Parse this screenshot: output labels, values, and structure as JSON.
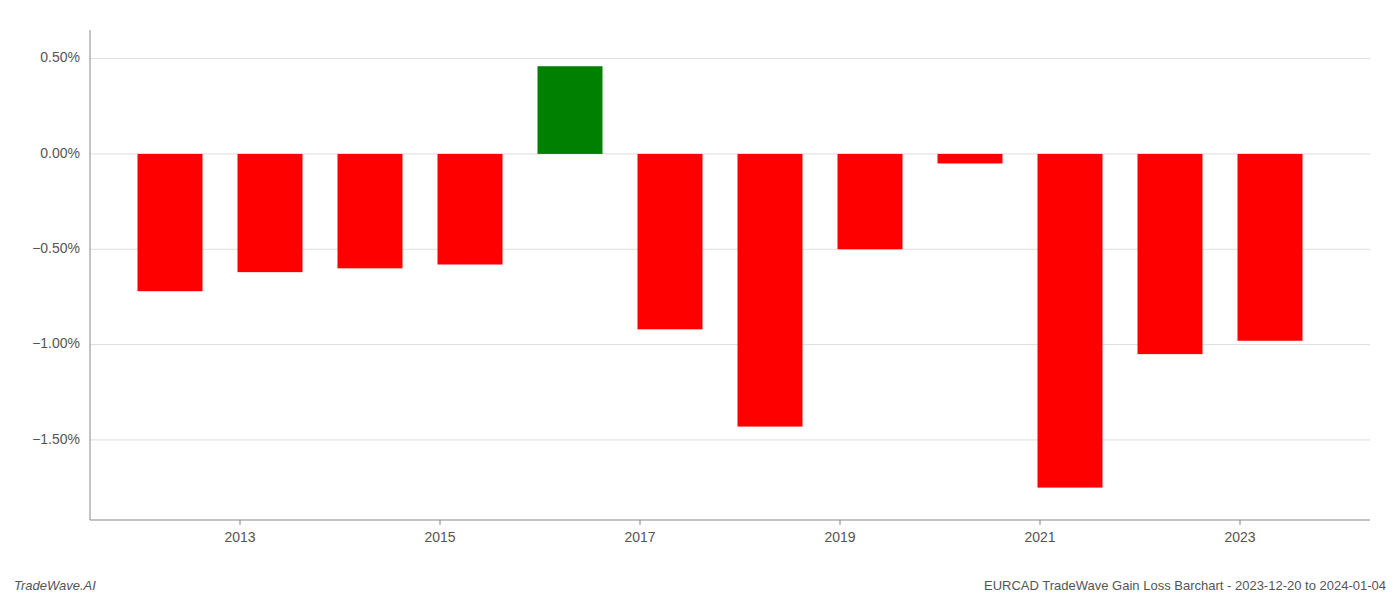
{
  "chart_data": {
    "type": "bar",
    "x": [
      2012.3,
      2013.3,
      2014.3,
      2015.3,
      2016.3,
      2017.3,
      2018.3,
      2019.3,
      2020.3,
      2021.3,
      2022.3,
      2023.3
    ],
    "values": [
      -0.72,
      -0.62,
      -0.6,
      -0.58,
      0.46,
      -0.92,
      -1.43,
      -0.5,
      -0.05,
      -1.75,
      -1.05,
      -0.98
    ],
    "colors": [
      "#ff0000",
      "#ff0000",
      "#ff0000",
      "#ff0000",
      "#008000",
      "#ff0000",
      "#ff0000",
      "#ff0000",
      "#ff0000",
      "#ff0000",
      "#ff0000",
      "#ff0000"
    ],
    "xlim": [
      2011.5,
      2024.3
    ],
    "xticks": [
      2013,
      2015,
      2017,
      2019,
      2021,
      2023
    ],
    "ylim": [
      -1.92,
      0.65
    ],
    "yticks": [
      {
        "value": 0.5,
        "label": "0.50%"
      },
      {
        "value": 0.0,
        "label": "0.00%"
      },
      {
        "value": -0.5,
        "label": "−0.50%"
      },
      {
        "value": -1.0,
        "label": "−1.00%"
      },
      {
        "value": -1.5,
        "label": "−1.50%"
      }
    ],
    "grid": true,
    "annotations": [
      "TradeWave.AI",
      "EURCAD TradeWave Gain Loss Barchart - 2023-12-20 to 2024-01-04"
    ]
  }
}
